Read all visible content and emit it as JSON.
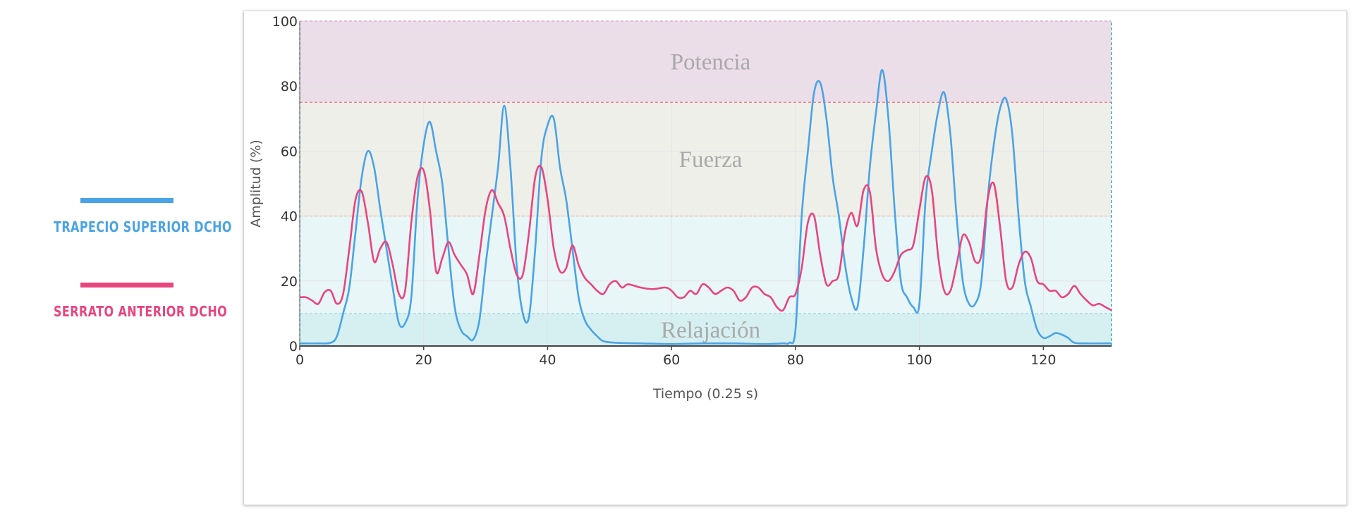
{
  "legend": [
    {
      "label": "TRAPECIO SUPERIOR DCHO",
      "color": "#4AA3E6"
    },
    {
      "label": "SERRATO ANTERIOR DCHO",
      "color": "#E8457F"
    }
  ],
  "chart_data": {
    "type": "line",
    "xlabel": "Tiempo (0.25 s)",
    "ylabel": "Amplitud (%)",
    "xlim": [
      0,
      131
    ],
    "ylim": [
      0,
      100
    ],
    "xticks": [
      0,
      20,
      40,
      60,
      80,
      100,
      120
    ],
    "yticks": [
      0,
      20,
      40,
      60,
      80,
      100
    ],
    "grid": true,
    "bands": [
      {
        "label": "Relajación",
        "from": 0,
        "to": 10,
        "color": "#d6f0f2"
      },
      {
        "label": "",
        "from": 10,
        "to": 40,
        "color": "#e8f6f8"
      },
      {
        "label": "Fuerza",
        "from": 40,
        "to": 75,
        "color": "#efefea"
      },
      {
        "label": "Potencia",
        "from": 75,
        "to": 100,
        "color": "#ecdee9"
      }
    ],
    "thresholds": [
      {
        "value": 10,
        "color": "#a8dbe0"
      },
      {
        "value": 40,
        "color": "#e8c9a8"
      },
      {
        "value": 75,
        "color": "#f08585"
      },
      {
        "value": 100,
        "color": "#e0a8d0"
      }
    ],
    "series": [
      {
        "name": "TRAPECIO SUPERIOR DCHO",
        "color": "#4AA3E6",
        "points": [
          [
            0,
            0.8
          ],
          [
            3,
            0.8
          ],
          [
            5,
            1
          ],
          [
            6,
            3
          ],
          [
            7,
            10
          ],
          [
            8,
            18
          ],
          [
            9,
            35
          ],
          [
            10,
            52
          ],
          [
            11,
            60
          ],
          [
            12,
            55
          ],
          [
            13,
            42
          ],
          [
            14,
            30
          ],
          [
            15,
            18
          ],
          [
            16,
            7
          ],
          [
            17,
            7
          ],
          [
            18,
            15
          ],
          [
            19,
            45
          ],
          [
            20,
            62
          ],
          [
            21,
            69
          ],
          [
            22,
            60
          ],
          [
            23,
            50
          ],
          [
            24,
            30
          ],
          [
            25,
            12
          ],
          [
            26,
            5
          ],
          [
            27,
            3
          ],
          [
            28,
            2
          ],
          [
            29,
            8
          ],
          [
            30,
            25
          ],
          [
            31,
            40
          ],
          [
            32,
            55
          ],
          [
            33,
            74
          ],
          [
            34,
            55
          ],
          [
            35,
            25
          ],
          [
            36,
            10
          ],
          [
            37,
            9
          ],
          [
            38,
            30
          ],
          [
            39,
            58
          ],
          [
            40,
            68
          ],
          [
            41,
            70
          ],
          [
            42,
            55
          ],
          [
            43,
            45
          ],
          [
            44,
            30
          ],
          [
            45,
            15
          ],
          [
            46,
            8
          ],
          [
            47,
            5
          ],
          [
            48,
            3
          ],
          [
            49,
            1.5
          ],
          [
            51,
            1
          ],
          [
            55,
            0.8
          ],
          [
            60,
            0.6
          ],
          [
            65,
            0.8
          ],
          [
            70,
            0.8
          ],
          [
            75,
            0.6
          ],
          [
            78,
            0.8
          ],
          [
            79,
            1
          ],
          [
            80,
            5
          ],
          [
            81,
            40
          ],
          [
            82,
            60
          ],
          [
            83,
            78
          ],
          [
            84,
            81
          ],
          [
            85,
            70
          ],
          [
            86,
            52
          ],
          [
            87,
            40
          ],
          [
            88,
            25
          ],
          [
            89,
            15
          ],
          [
            90,
            12
          ],
          [
            91,
            30
          ],
          [
            92,
            55
          ],
          [
            93,
            72
          ],
          [
            94,
            85
          ],
          [
            95,
            70
          ],
          [
            96,
            42
          ],
          [
            97,
            20
          ],
          [
            98,
            15
          ],
          [
            99,
            12
          ],
          [
            100,
            13
          ],
          [
            101,
            45
          ],
          [
            102,
            60
          ],
          [
            103,
            72
          ],
          [
            104,
            78
          ],
          [
            105,
            65
          ],
          [
            106,
            40
          ],
          [
            107,
            20
          ],
          [
            108,
            13
          ],
          [
            109,
            13
          ],
          [
            110,
            20
          ],
          [
            111,
            45
          ],
          [
            112,
            62
          ],
          [
            113,
            73
          ],
          [
            114,
            76
          ],
          [
            115,
            65
          ],
          [
            116,
            40
          ],
          [
            117,
            20
          ],
          [
            118,
            12
          ],
          [
            119,
            5
          ],
          [
            120,
            2.5
          ],
          [
            121,
            3
          ],
          [
            122,
            4
          ],
          [
            123,
            3.5
          ],
          [
            124,
            2.5
          ],
          [
            125,
            1
          ],
          [
            127,
            0.8
          ],
          [
            131,
            0.8
          ]
        ]
      },
      {
        "name": "SERRATO ANTERIOR DCHO",
        "color": "#E8457F",
        "points": [
          [
            0,
            15
          ],
          [
            1,
            15
          ],
          [
            2,
            14
          ],
          [
            3,
            13
          ],
          [
            4,
            16.5
          ],
          [
            5,
            17
          ],
          [
            6,
            13
          ],
          [
            7,
            16
          ],
          [
            8,
            30
          ],
          [
            9,
            45
          ],
          [
            10,
            47.5
          ],
          [
            11,
            38
          ],
          [
            12,
            26
          ],
          [
            13,
            30
          ],
          [
            14,
            32
          ],
          [
            15,
            25
          ],
          [
            16,
            16
          ],
          [
            17,
            17
          ],
          [
            18,
            38
          ],
          [
            19,
            52
          ],
          [
            20,
            54
          ],
          [
            21,
            42
          ],
          [
            22,
            23
          ],
          [
            23,
            27
          ],
          [
            24,
            32
          ],
          [
            25,
            28
          ],
          [
            26,
            25
          ],
          [
            27,
            22
          ],
          [
            28,
            16
          ],
          [
            29,
            28
          ],
          [
            30,
            42
          ],
          [
            31,
            48
          ],
          [
            32,
            44
          ],
          [
            33,
            40
          ],
          [
            34,
            30
          ],
          [
            35,
            22
          ],
          [
            36,
            22
          ],
          [
            37,
            35
          ],
          [
            38,
            52
          ],
          [
            39,
            55
          ],
          [
            40,
            45
          ],
          [
            41,
            30
          ],
          [
            42,
            23
          ],
          [
            43,
            24
          ],
          [
            44,
            31
          ],
          [
            45,
            25
          ],
          [
            46,
            21
          ],
          [
            47,
            19
          ],
          [
            48,
            17
          ],
          [
            49,
            16
          ],
          [
            50,
            19
          ],
          [
            51,
            20
          ],
          [
            52,
            18
          ],
          [
            53,
            19
          ],
          [
            55,
            18
          ],
          [
            57,
            17.5
          ],
          [
            59,
            18
          ],
          [
            60,
            17
          ],
          [
            61,
            15
          ],
          [
            62,
            15
          ],
          [
            63,
            17
          ],
          [
            64,
            16
          ],
          [
            65,
            19
          ],
          [
            66,
            18
          ],
          [
            67,
            16
          ],
          [
            68,
            17
          ],
          [
            69,
            18
          ],
          [
            70,
            17
          ],
          [
            71,
            14
          ],
          [
            72,
            15
          ],
          [
            73,
            18
          ],
          [
            74,
            18
          ],
          [
            75,
            16
          ],
          [
            76,
            15
          ],
          [
            77,
            12
          ],
          [
            78,
            11
          ],
          [
            79,
            15
          ],
          [
            80,
            16
          ],
          [
            81,
            24
          ],
          [
            82,
            38
          ],
          [
            83,
            40
          ],
          [
            84,
            28
          ],
          [
            85,
            19
          ],
          [
            86,
            20
          ],
          [
            87,
            22
          ],
          [
            88,
            35
          ],
          [
            89,
            41
          ],
          [
            90,
            37
          ],
          [
            91,
            48
          ],
          [
            92,
            47.5
          ],
          [
            93,
            30
          ],
          [
            94,
            22
          ],
          [
            95,
            20
          ],
          [
            96,
            23
          ],
          [
            97,
            28
          ],
          [
            98,
            29.5
          ],
          [
            99,
            31
          ],
          [
            100,
            42
          ],
          [
            101,
            52
          ],
          [
            102,
            48
          ],
          [
            103,
            28
          ],
          [
            104,
            17
          ],
          [
            105,
            17
          ],
          [
            106,
            25
          ],
          [
            107,
            34
          ],
          [
            108,
            32
          ],
          [
            109,
            26
          ],
          [
            110,
            28
          ],
          [
            111,
            45
          ],
          [
            112,
            50
          ],
          [
            113,
            37
          ],
          [
            114,
            20
          ],
          [
            115,
            18
          ],
          [
            116,
            25
          ],
          [
            117,
            29
          ],
          [
            118,
            27
          ],
          [
            119,
            20
          ],
          [
            120,
            19
          ],
          [
            121,
            17
          ],
          [
            122,
            17
          ],
          [
            123,
            15
          ],
          [
            124,
            16
          ],
          [
            125,
            18.5
          ],
          [
            126,
            16
          ],
          [
            127,
            14
          ],
          [
            128,
            12.5
          ],
          [
            129,
            13
          ],
          [
            130,
            12
          ],
          [
            131,
            11
          ]
        ]
      }
    ]
  }
}
